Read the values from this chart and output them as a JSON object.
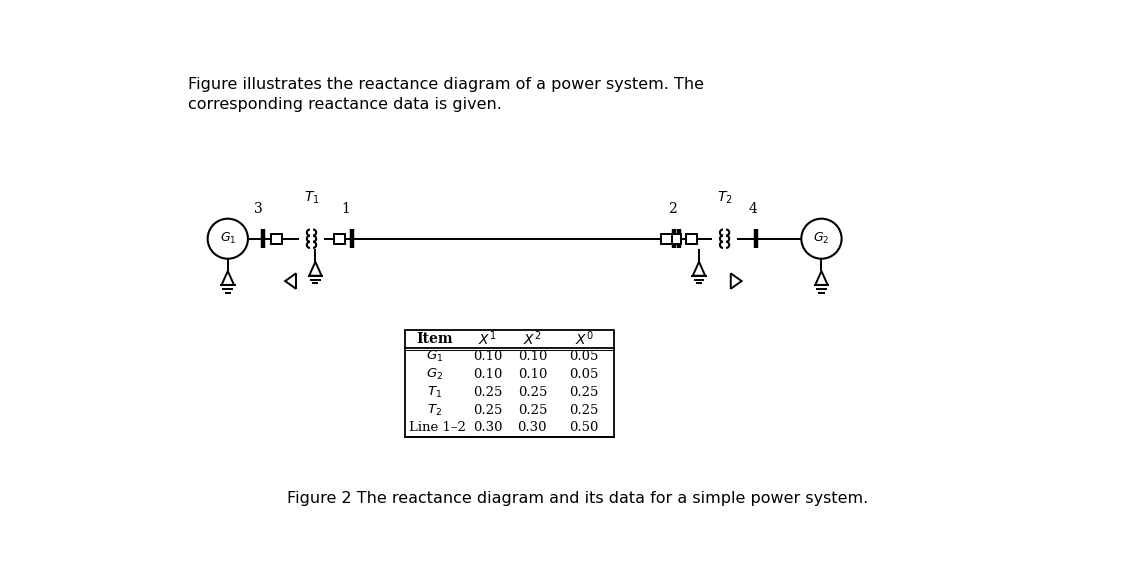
{
  "bg_color": "#ffffff",
  "title_text": "Figure illustrates the reactance diagram of a power system. The\ncorresponding reactance data is given.",
  "caption_text": "Figure 2 The reactance diagram and its data for a simple power system.",
  "table_headers": [
    "Item",
    "X^1",
    "X^2",
    "X^0"
  ],
  "table_rows": [
    [
      "G_1",
      "0.10",
      "0.10",
      "0.05"
    ],
    [
      "G_2",
      "0.10",
      "0.10",
      "0.05"
    ],
    [
      "T_1",
      "0.25",
      "0.25",
      "0.25"
    ],
    [
      "T_2",
      "0.25",
      "0.25",
      "0.25"
    ],
    [
      "Line 1-2",
      "0.30",
      "0.30",
      "0.50"
    ]
  ],
  "line_color": "#000000"
}
